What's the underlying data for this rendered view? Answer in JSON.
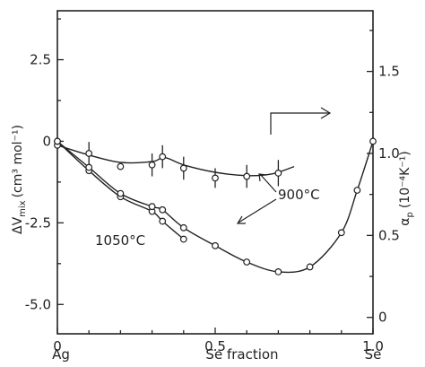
{
  "chart_data": {
    "type": "scatter",
    "xlabel": "Se fraction",
    "left_ylabel": "ΔV",
    "left_ylabel_sub": "mix",
    "left_ylabel_units": "(cm³ mol⁻¹)",
    "right_ylabel": "α",
    "right_ylabel_sub": "p",
    "right_ylabel_units": "(10⁻⁴K⁻¹)",
    "x_ticks": [
      "0",
      "0.5",
      "1.0"
    ],
    "x_end_labels": {
      "left": "Ag",
      "right": "Se"
    },
    "left_y_ticks": [
      "2.5",
      "0",
      "-2.5",
      "-5.0"
    ],
    "right_y_ticks": [
      "1.5",
      "1.0",
      "0.5",
      "0"
    ],
    "xlim": [
      0,
      1
    ],
    "ylim_left": [
      -5.9,
      4.0
    ],
    "ylim_right": [
      -0.1,
      1.87
    ],
    "annotations": {
      "t900": "900°C",
      "t1050": "1050°C"
    },
    "series": [
      {
        "id": "alpha_900",
        "axis": "right",
        "x": [
          0,
          0.1,
          0.2,
          0.3,
          0.333,
          0.4,
          0.5,
          0.6,
          0.7
        ],
        "y": [
          1.05,
          1.0,
          0.92,
          0.93,
          0.98,
          0.91,
          0.85,
          0.86,
          0.88
        ],
        "err": [
          0,
          0.07,
          0,
          0.07,
          0.07,
          0.07,
          0.06,
          0.07,
          0.08
        ]
      },
      {
        "id": "dv_900",
        "axis": "left",
        "x": [
          0,
          0.1,
          0.2,
          0.3,
          0.333,
          0.4
        ],
        "y": [
          0,
          -0.9,
          -1.7,
          -2.15,
          -2.45,
          -3.0
        ]
      },
      {
        "id": "dv_1050",
        "axis": "left",
        "x": [
          0,
          0.1,
          0.2,
          0.3,
          0.333,
          0.4,
          0.5,
          0.6,
          0.7,
          0.8,
          0.9,
          0.95,
          1.0
        ],
        "y": [
          0,
          -0.8,
          -1.6,
          -2.0,
          -2.1,
          -2.65,
          -3.2,
          -3.7,
          -4.0,
          -3.85,
          -2.8,
          -1.5,
          0
        ]
      }
    ]
  }
}
